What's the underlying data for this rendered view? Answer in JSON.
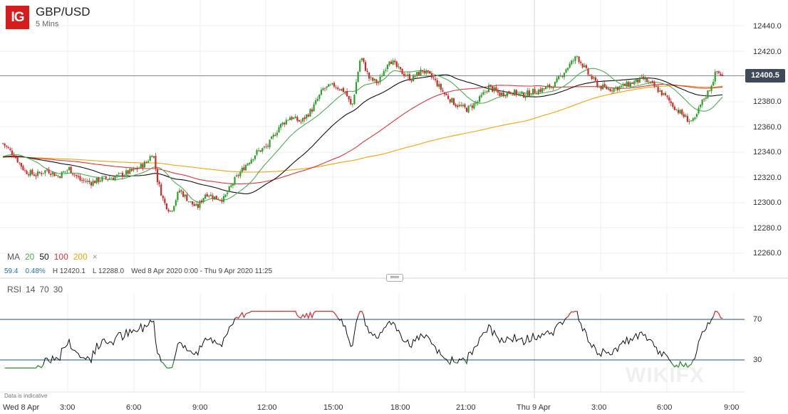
{
  "header": {
    "logo_text": "IG",
    "instrument": "GBP/USD",
    "interval": "5 Mins"
  },
  "price_axis": {
    "labels": [
      "12440.0",
      "12420.0",
      "12400.0",
      "12380.0",
      "12360.0",
      "12340.0",
      "12320.0",
      "12300.0",
      "12280.0",
      "12260.0"
    ],
    "current_price": "12400.5"
  },
  "ma_legend": {
    "label": "MA",
    "p20": "20",
    "p50": "50",
    "p100": "100",
    "p200": "200",
    "close": "×"
  },
  "stats": {
    "v1": "59.4",
    "v2": "0.48%",
    "high": "H 12420.1",
    "low": "L 12288.0",
    "range": "Wed 8 Apr 2020 0:00 - Thu 9 Apr 2020 11:25"
  },
  "rsi_legend": {
    "label": "RSI",
    "period": "14",
    "upper": "70",
    "lower": "30"
  },
  "rsi_axis": {
    "upper": "70",
    "lower": "30"
  },
  "time_axis": [
    "Wed 8 Apr",
    "3:00",
    "6:00",
    "9:00",
    "12:00",
    "15:00",
    "18:00",
    "21:00",
    "Thu 9 Apr",
    "3:00",
    "6:00",
    "9:00"
  ],
  "footer_note": "Data is indicative",
  "colors": {
    "up": "#2ca02c",
    "down": "#d62728",
    "ma20": "#4caf50",
    "ma50": "#111111",
    "ma100": "#d9383a",
    "ma200": "#f0a30a",
    "rsi": "#111111",
    "rsi_hi": "#e53935",
    "rsi_lo": "#2e9d2e",
    "badge": "#3e4a5a"
  },
  "chart_data": {
    "type": "candlestick",
    "interval": "5 Mins",
    "x_range": [
      "Wed 8 Apr 2020 0:00",
      "Thu 9 Apr 2020 11:25"
    ],
    "y_range": [
      12255,
      12450
    ],
    "high": 12420.1,
    "low": 12288.0,
    "last": 12400.5,
    "close_path": [
      {
        "t": 0,
        "v": 12347
      },
      {
        "t": 0.5,
        "v": 12338
      },
      {
        "t": 1.0,
        "v": 12325
      },
      {
        "t": 1.5,
        "v": 12322
      },
      {
        "t": 2.0,
        "v": 12326
      },
      {
        "t": 2.5,
        "v": 12321
      },
      {
        "t": 3.0,
        "v": 12327
      },
      {
        "t": 3.5,
        "v": 12318
      },
      {
        "t": 4.0,
        "v": 12316
      },
      {
        "t": 4.5,
        "v": 12319
      },
      {
        "t": 5.0,
        "v": 12320
      },
      {
        "t": 5.5,
        "v": 12323
      },
      {
        "t": 6.0,
        "v": 12326
      },
      {
        "t": 6.5,
        "v": 12332
      },
      {
        "t": 6.8,
        "v": 12340
      },
      {
        "t": 7.0,
        "v": 12318
      },
      {
        "t": 7.3,
        "v": 12300
      },
      {
        "t": 7.6,
        "v": 12293
      },
      {
        "t": 8.0,
        "v": 12310
      },
      {
        "t": 8.5,
        "v": 12300
      },
      {
        "t": 8.8,
        "v": 12296
      },
      {
        "t": 9.2,
        "v": 12308
      },
      {
        "t": 9.6,
        "v": 12304
      },
      {
        "t": 10.0,
        "v": 12303
      },
      {
        "t": 10.5,
        "v": 12318
      },
      {
        "t": 11.0,
        "v": 12330
      },
      {
        "t": 11.5,
        "v": 12340
      },
      {
        "t": 12.0,
        "v": 12345
      },
      {
        "t": 12.5,
        "v": 12360
      },
      {
        "t": 13.0,
        "v": 12368
      },
      {
        "t": 13.5,
        "v": 12364
      },
      {
        "t": 14.0,
        "v": 12374
      },
      {
        "t": 14.5,
        "v": 12390
      },
      {
        "t": 15.0,
        "v": 12393
      },
      {
        "t": 15.5,
        "v": 12388
      },
      {
        "t": 15.8,
        "v": 12375
      },
      {
        "t": 16.2,
        "v": 12416
      },
      {
        "t": 16.6,
        "v": 12398
      },
      {
        "t": 17.0,
        "v": 12395
      },
      {
        "t": 17.5,
        "v": 12414
      },
      {
        "t": 18.0,
        "v": 12404
      },
      {
        "t": 18.5,
        "v": 12398
      },
      {
        "t": 19.0,
        "v": 12405
      },
      {
        "t": 19.5,
        "v": 12398
      },
      {
        "t": 20.0,
        "v": 12386
      },
      {
        "t": 20.5,
        "v": 12378
      },
      {
        "t": 21.0,
        "v": 12374
      },
      {
        "t": 21.5,
        "v": 12380
      },
      {
        "t": 22.0,
        "v": 12392
      },
      {
        "t": 22.5,
        "v": 12386
      },
      {
        "t": 23.0,
        "v": 12388
      },
      {
        "t": 23.5,
        "v": 12385
      },
      {
        "t": 24.0,
        "v": 12388
      },
      {
        "t": 24.5,
        "v": 12390
      },
      {
        "t": 25.0,
        "v": 12394
      },
      {
        "t": 25.5,
        "v": 12406
      },
      {
        "t": 26.0,
        "v": 12416
      },
      {
        "t": 26.5,
        "v": 12402
      },
      {
        "t": 27.0,
        "v": 12392
      },
      {
        "t": 27.5,
        "v": 12390
      },
      {
        "t": 28.0,
        "v": 12392
      },
      {
        "t": 28.5,
        "v": 12395
      },
      {
        "t": 29.0,
        "v": 12398
      },
      {
        "t": 29.5,
        "v": 12392
      },
      {
        "t": 30.0,
        "v": 12384
      },
      {
        "t": 30.5,
        "v": 12374
      },
      {
        "t": 31.0,
        "v": 12366
      },
      {
        "t": 31.3,
        "v": 12364
      },
      {
        "t": 31.6,
        "v": 12378
      },
      {
        "t": 32.0,
        "v": 12390
      },
      {
        "t": 32.3,
        "v": 12404
      },
      {
        "t": 32.6,
        "v": 12400.5
      }
    ]
  }
}
